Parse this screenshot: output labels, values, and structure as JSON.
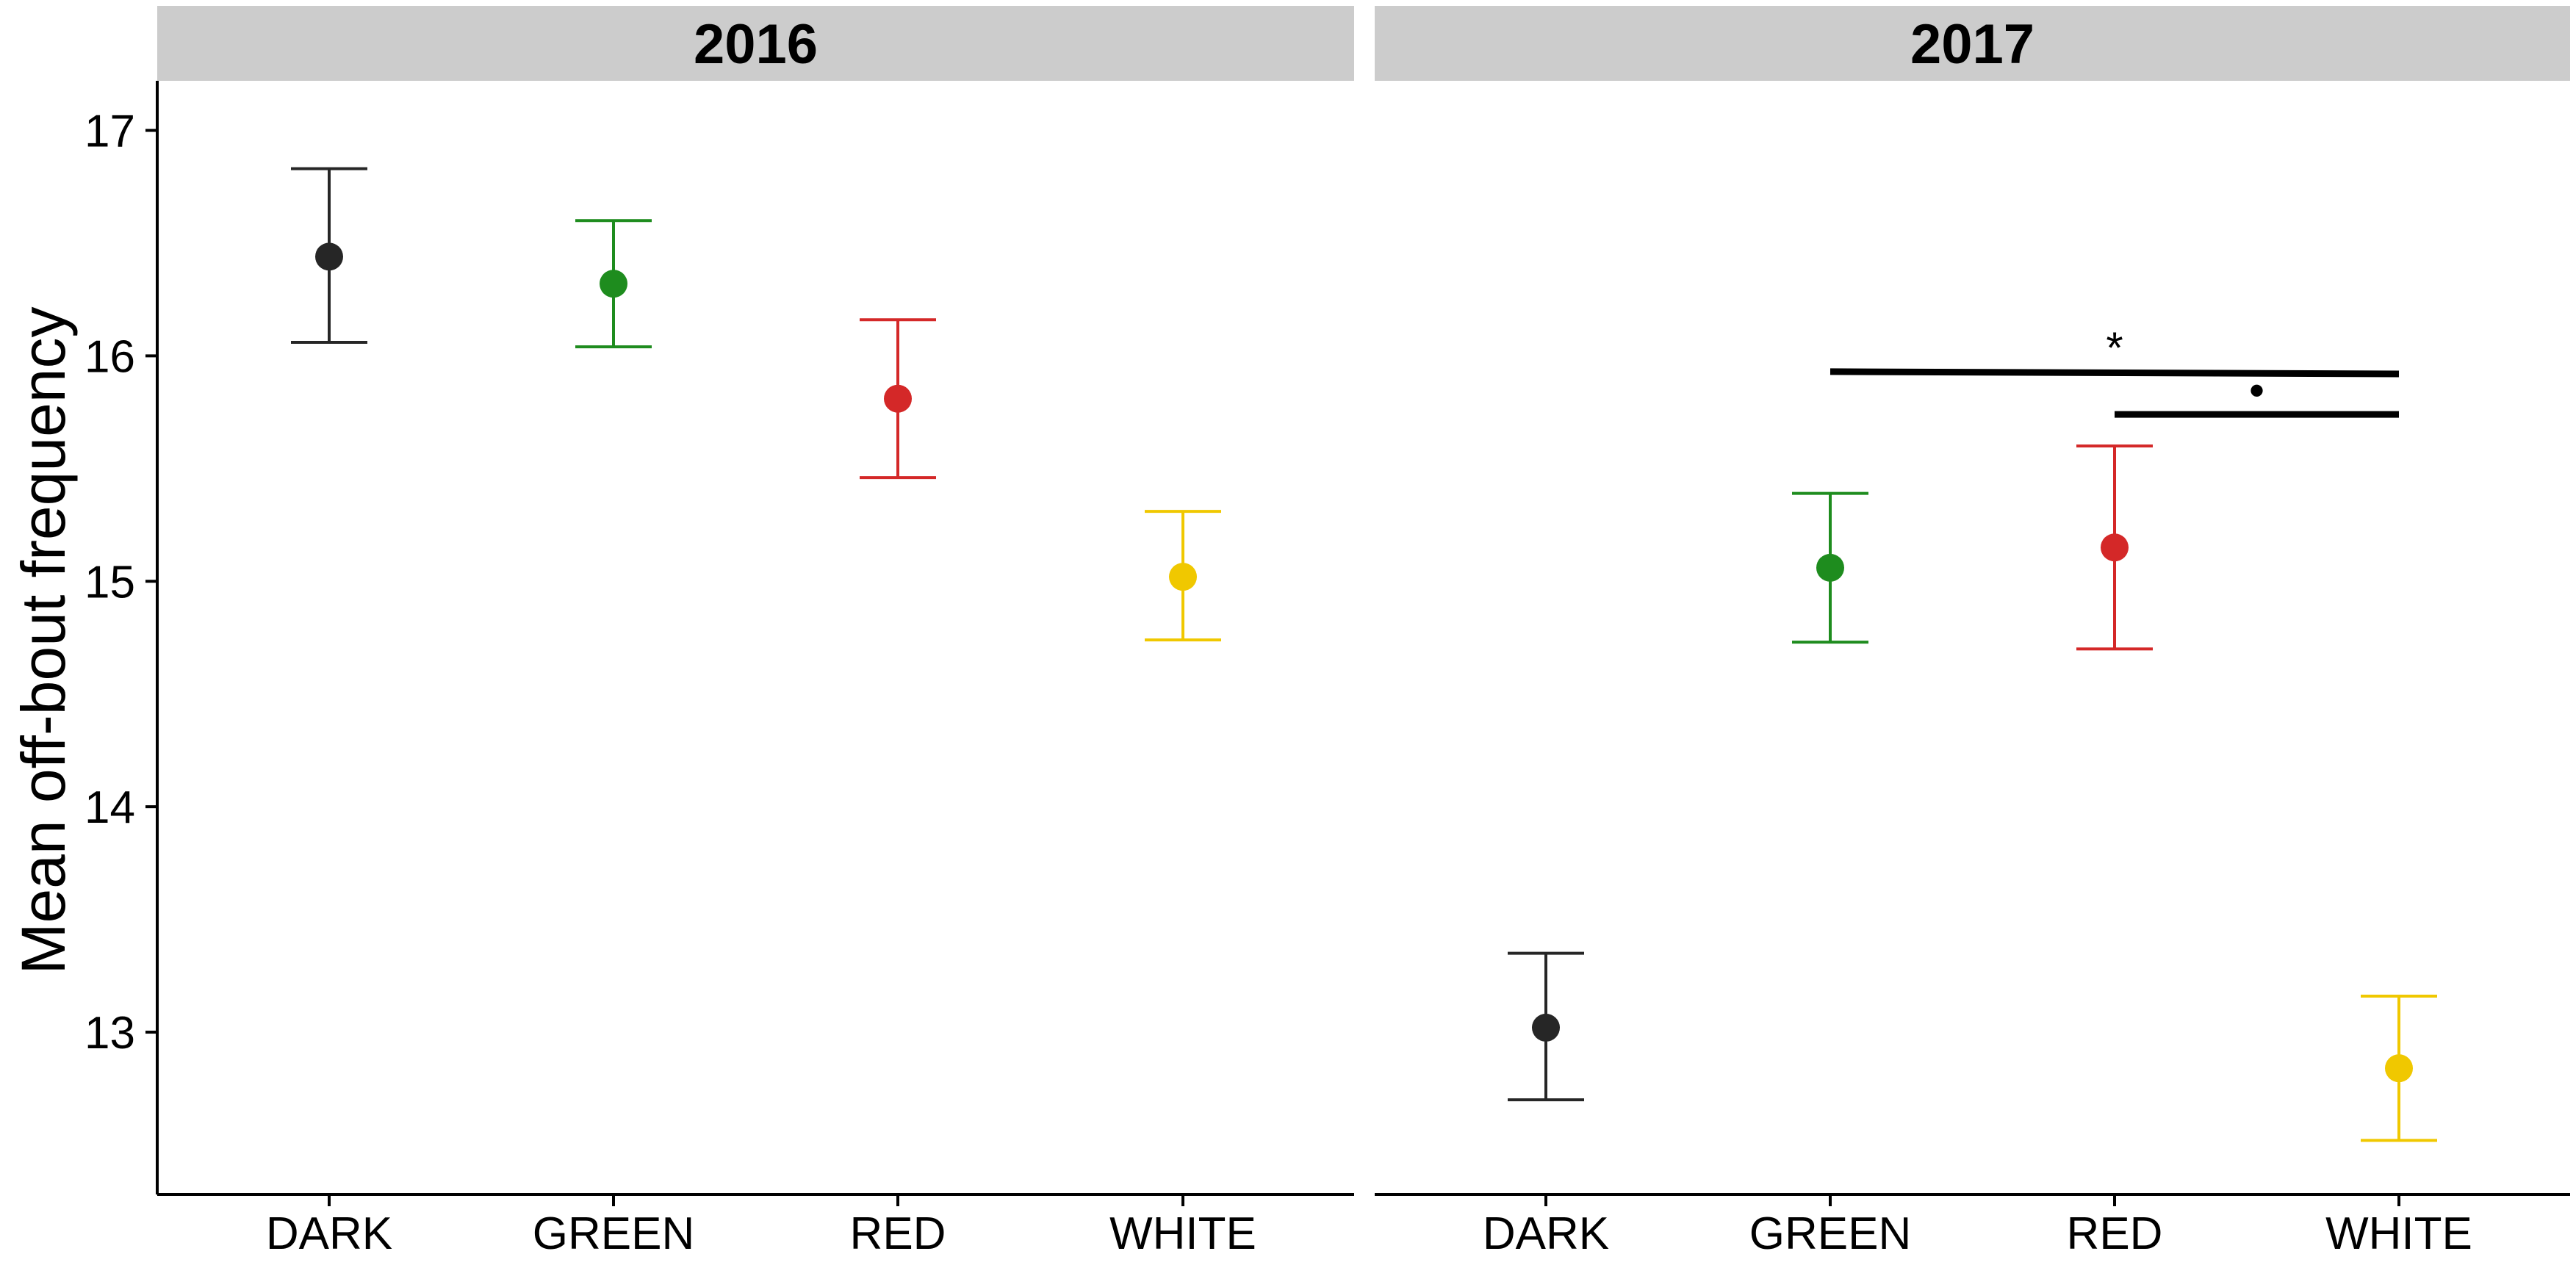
{
  "chart_data": {
    "type": "scatter",
    "ylabel": "Mean off-bout frequency",
    "xlabel": "",
    "ylim": [
      12.28,
      17.22
    ],
    "yticks": [
      13,
      14,
      15,
      16,
      17
    ],
    "categories": [
      "DARK",
      "GREEN",
      "RED",
      "WHITE"
    ],
    "colors": {
      "DARK": "#262626",
      "GREEN": "#1e8c1e",
      "RED": "#d42828",
      "WHITE": "#f0c800"
    },
    "strip_background": "#cccccc",
    "grid": false,
    "legend": "none",
    "panels": [
      {
        "title": "2016",
        "points": [
          {
            "category": "DARK",
            "mean": 16.44,
            "lower": 16.06,
            "upper": 16.83
          },
          {
            "category": "GREEN",
            "mean": 16.32,
            "lower": 16.04,
            "upper": 16.6
          },
          {
            "category": "RED",
            "mean": 15.81,
            "lower": 15.46,
            "upper": 16.16
          },
          {
            "category": "WHITE",
            "mean": 15.02,
            "lower": 14.74,
            "upper": 15.31
          }
        ],
        "significance": []
      },
      {
        "title": "2017",
        "points": [
          {
            "category": "DARK",
            "mean": 13.02,
            "lower": 12.7,
            "upper": 13.35
          },
          {
            "category": "GREEN",
            "mean": 15.06,
            "lower": 14.73,
            "upper": 15.39
          },
          {
            "category": "RED",
            "mean": 15.15,
            "lower": 14.7,
            "upper": 15.6
          },
          {
            "category": "WHITE",
            "mean": 12.84,
            "lower": 12.52,
            "upper": 13.16
          }
        ],
        "significance": [
          {
            "from": "GREEN",
            "to": "WHITE",
            "label": "*",
            "y_start": 15.93,
            "y_end": 15.92
          },
          {
            "from": "RED",
            "to": "WHITE",
            "label": "•",
            "y_start": 15.74,
            "y_end": 15.74
          }
        ]
      }
    ]
  }
}
